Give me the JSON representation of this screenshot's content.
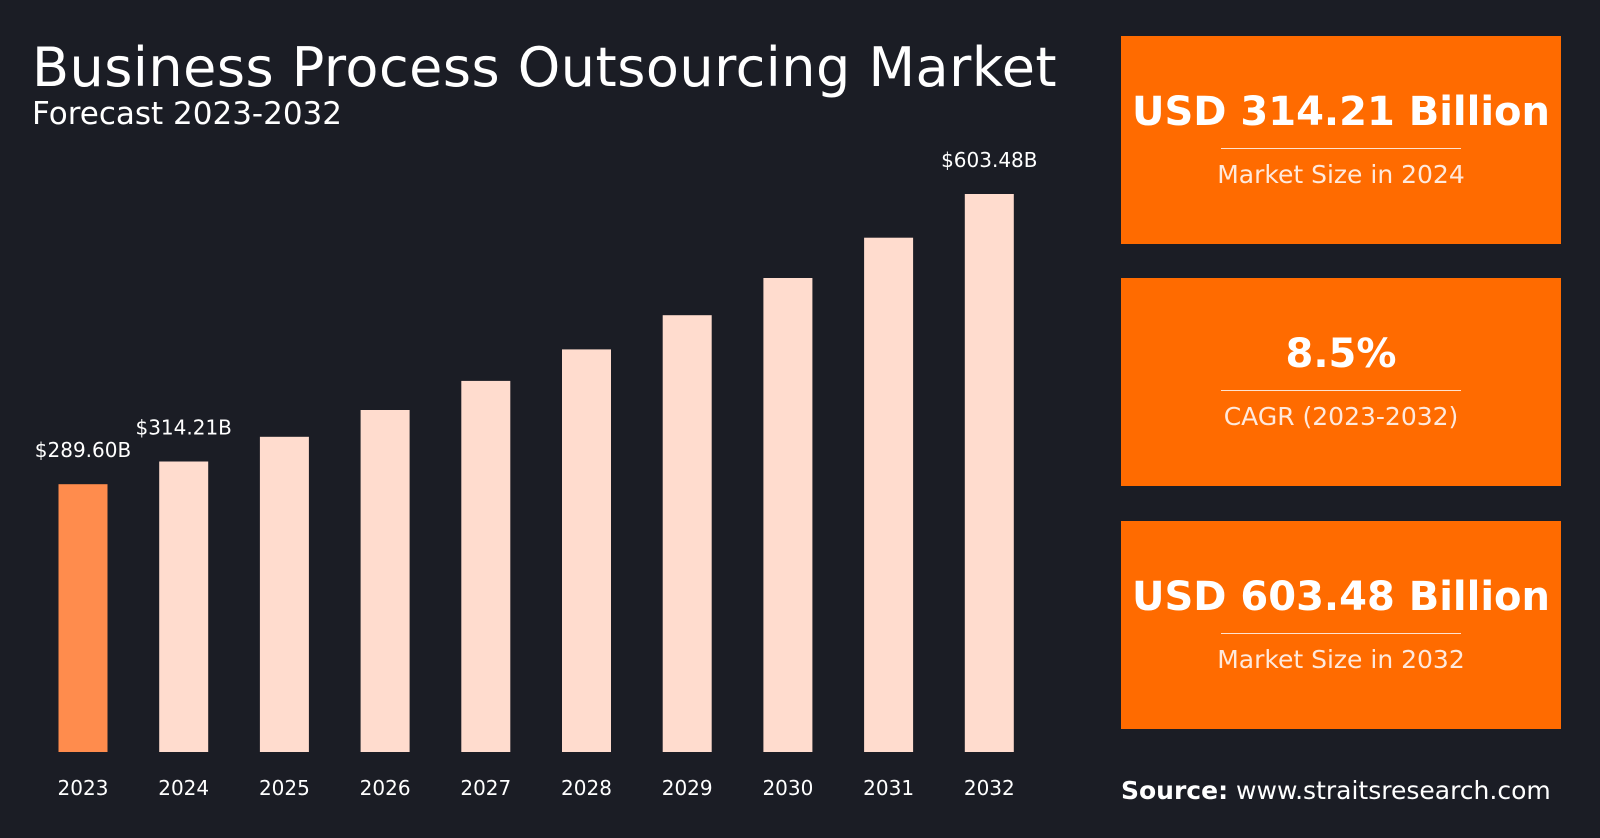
{
  "chart_data": {
    "type": "bar",
    "title": "Business Process Outsourcing Market",
    "subtitle": "Forecast 2023-2032",
    "categories": [
      "2023",
      "2024",
      "2025",
      "2026",
      "2027",
      "2028",
      "2029",
      "2030",
      "2031",
      "2032"
    ],
    "values": [
      289.6,
      314.21,
      340.9,
      369.9,
      401.3,
      435.4,
      472.4,
      512.6,
      556.2,
      603.48
    ],
    "value_labels": [
      "$289.60B",
      "$314.21B",
      "",
      "",
      "",
      "",
      "",
      "",
      "",
      "$603.48B"
    ],
    "highlight_color": "#ff8c4d",
    "bar_color": "#ffdcce",
    "highlight_index": 0,
    "ylim": [
      0,
      603.48
    ],
    "xlabel": "",
    "ylabel": ""
  },
  "cards": [
    {
      "value": "USD 314.21 Billion",
      "caption": "Market Size in 2024"
    },
    {
      "value": "8.5%",
      "caption": "CAGR (2023-2032)"
    },
    {
      "value": "USD 603.48 Billion",
      "caption": "Market Size in 2032"
    }
  ],
  "source": {
    "label": "Source:",
    "text": "www.straitsresearch.com"
  },
  "colors": {
    "background": "#1b1d25",
    "card": "#ff6b00"
  }
}
